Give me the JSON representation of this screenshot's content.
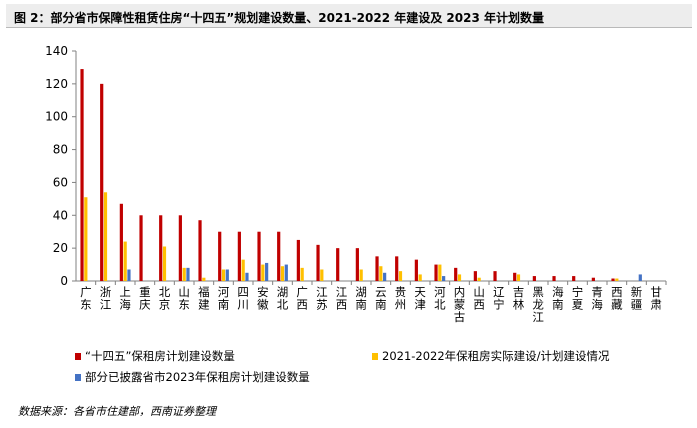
{
  "title": "图 2：部分省市保障性租赁住房“十四五”规划建设数量、2021-2022 年建设及 2023 年计划数量",
  "source": "数据来源：各省市住建部，西南证券整理",
  "chart_data": {
    "type": "bar",
    "ylim": [
      0,
      140
    ],
    "yticks": [
      "0",
      "20",
      "40",
      "60",
      "80",
      "100",
      "120",
      "140"
    ],
    "categories": [
      "广东",
      "浙江",
      "上海",
      "重庆",
      "北京",
      "山东",
      "福建",
      "河南",
      "四川",
      "安徽",
      "湖北",
      "广西",
      "江苏",
      "江西",
      "湖南",
      "云南",
      "贵州",
      "天津",
      "河北",
      "内蒙古",
      "山西",
      "辽宁",
      "吉林",
      "黑龙江",
      "海南",
      "宁夏",
      "青海",
      "西藏",
      "新疆",
      "甘肃"
    ],
    "series": [
      {
        "name": "“十四五”保租房计划建设数量",
        "color": "#c00000",
        "values": [
          129,
          120,
          47,
          40,
          40,
          40,
          37,
          30,
          30,
          30,
          30,
          25,
          22,
          20,
          20,
          15,
          15,
          13,
          10,
          8,
          6,
          6,
          5,
          3,
          3,
          3,
          2,
          1.5,
          null,
          null
        ]
      },
      {
        "name": "2021-2022年保租房实际建设/计划建设情况",
        "color": "#ffc000",
        "values": [
          51,
          54,
          24,
          null,
          21,
          8,
          2,
          7,
          13,
          10,
          9,
          8,
          7,
          null,
          7,
          9,
          6,
          4,
          10,
          4,
          2,
          null,
          4,
          null,
          null,
          null,
          null,
          1.5,
          null,
          null
        ]
      },
      {
        "name": "部分已披露省市2023年保租房计划建设数量",
        "color": "#4472c4",
        "values": [
          null,
          null,
          7,
          null,
          null,
          8,
          null,
          7,
          5,
          11,
          10,
          null,
          null,
          null,
          null,
          5,
          null,
          null,
          3,
          null,
          null,
          null,
          null,
          null,
          null,
          null,
          null,
          null,
          4,
          null
        ]
      }
    ],
    "legend": "bottom"
  }
}
